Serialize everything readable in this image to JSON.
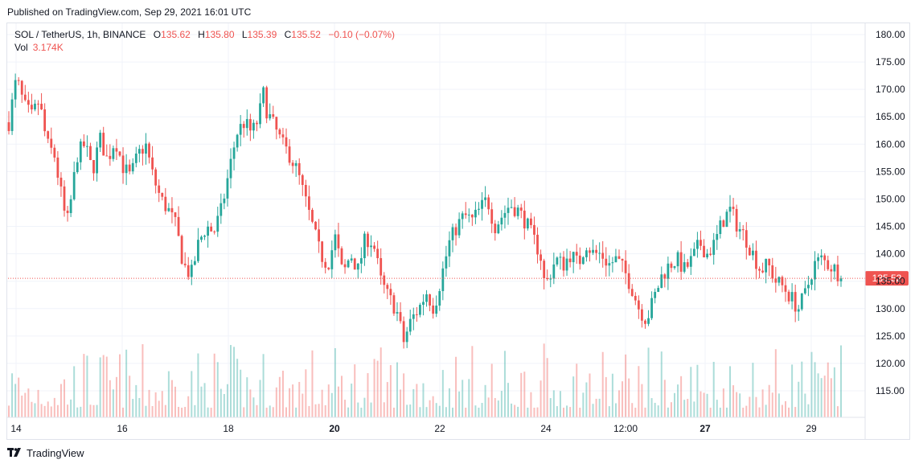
{
  "header": {
    "published": "Published on TradingView.com, Sep 29, 2021 16:01 UTC"
  },
  "legend": {
    "symbol": "SOL / TetherUS, 1h, BINANCE",
    "open_label": "O",
    "open": "135.62",
    "high_label": "H",
    "high": "135.80",
    "low_label": "L",
    "low": "135.39",
    "close_label": "C",
    "close": "135.52",
    "change": "−0.10 (−0.07%)",
    "vol_label": "Vol",
    "vol": "3.174K"
  },
  "footer": {
    "brand": "TradingView",
    "logo_icon": "tradingview-logo-icon"
  },
  "colors": {
    "up": "#26a69a",
    "down": "#ef5350",
    "grid": "#f0f3fa",
    "price_line": "#ef5350"
  },
  "chart_data": {
    "type": "candlestick",
    "y_axis": {
      "ticks": [
        115,
        120,
        125,
        130,
        135,
        140,
        145,
        150,
        155,
        160,
        165,
        170,
        175,
        180
      ],
      "range": [
        110,
        182
      ],
      "position": "right"
    },
    "x_axis": {
      "labels": [
        "14",
        "16",
        "18",
        "20",
        "22",
        "24",
        "12:00",
        "27",
        "29"
      ],
      "bold_labels": [
        "20",
        "27"
      ]
    },
    "last_price": 135.52,
    "last_price_label": "135.52",
    "path": [
      [
        0,
        164
      ],
      [
        0.5,
        172
      ],
      [
        1,
        167
      ],
      [
        1.5,
        165
      ],
      [
        2,
        168
      ],
      [
        2.5,
        160
      ],
      [
        3,
        158
      ],
      [
        3.5,
        150
      ],
      [
        3.8,
        145
      ],
      [
        4,
        148
      ],
      [
        4.5,
        158
      ],
      [
        5,
        160
      ],
      [
        5.5,
        155
      ],
      [
        6,
        161
      ],
      [
        6.5,
        157
      ],
      [
        7,
        161
      ],
      [
        7.5,
        156
      ],
      [
        8,
        154
      ],
      [
        8.5,
        158
      ],
      [
        9,
        160
      ],
      [
        9.5,
        154
      ],
      [
        10,
        150
      ],
      [
        10.5,
        148
      ],
      [
        11,
        145
      ],
      [
        11.5,
        138
      ],
      [
        12,
        136
      ],
      [
        12.5,
        142
      ],
      [
        13,
        145
      ],
      [
        13.5,
        144
      ],
      [
        14,
        148
      ],
      [
        14.5,
        155
      ],
      [
        15,
        162
      ],
      [
        15.5,
        164
      ],
      [
        16,
        162
      ],
      [
        16.5,
        165
      ],
      [
        16.7,
        170
      ],
      [
        17,
        166
      ],
      [
        17.5,
        163
      ],
      [
        18,
        160
      ],
      [
        18.5,
        158
      ],
      [
        19,
        155
      ],
      [
        19.5,
        150
      ],
      [
        20,
        145
      ],
      [
        20.5,
        140
      ],
      [
        21,
        138
      ],
      [
        21.5,
        143
      ],
      [
        22,
        136
      ],
      [
        22.5,
        140
      ],
      [
        23,
        137
      ],
      [
        23.5,
        143
      ],
      [
        24,
        142
      ],
      [
        24.5,
        135
      ],
      [
        25,
        132
      ],
      [
        25.5,
        130
      ],
      [
        26,
        124
      ],
      [
        26.5,
        128
      ],
      [
        27,
        130
      ],
      [
        27.5,
        133
      ],
      [
        28,
        130
      ],
      [
        28.5,
        136
      ],
      [
        29,
        142
      ],
      [
        29.5,
        145
      ],
      [
        30,
        147
      ],
      [
        30.5,
        146
      ],
      [
        31,
        148
      ],
      [
        31.5,
        150
      ],
      [
        32,
        145
      ],
      [
        32.5,
        147
      ],
      [
        33,
        149
      ],
      [
        33.5,
        148
      ],
      [
        34,
        146
      ],
      [
        34.5,
        143
      ],
      [
        35,
        140
      ],
      [
        35.3,
        134
      ],
      [
        35.6,
        136
      ],
      [
        36,
        139
      ],
      [
        36.5,
        138
      ],
      [
        37,
        140
      ],
      [
        37.5,
        138
      ],
      [
        38,
        142
      ],
      [
        38.5,
        140
      ],
      [
        39,
        140
      ],
      [
        39.5,
        138
      ],
      [
        40,
        139
      ],
      [
        40.5,
        137
      ],
      [
        41,
        134
      ],
      [
        41.5,
        130
      ],
      [
        42,
        128
      ],
      [
        42.5,
        132
      ],
      [
        43,
        136
      ],
      [
        43.5,
        138
      ],
      [
        44,
        139
      ],
      [
        44.5,
        137
      ],
      [
        45,
        139
      ],
      [
        45.5,
        142
      ],
      [
        46,
        140
      ],
      [
        46.5,
        142
      ],
      [
        47,
        146
      ],
      [
        47.5,
        148
      ],
      [
        48,
        145
      ],
      [
        48.5,
        143
      ],
      [
        49,
        140
      ],
      [
        49.5,
        137
      ],
      [
        50,
        138
      ],
      [
        50.5,
        135
      ],
      [
        51,
        134
      ],
      [
        51.5,
        132
      ],
      [
        52,
        130
      ],
      [
        52.5,
        133
      ],
      [
        53,
        138
      ],
      [
        53.5,
        139
      ],
      [
        54,
        138
      ],
      [
        54.5,
        137
      ],
      [
        54.8,
        135.52
      ]
    ]
  }
}
